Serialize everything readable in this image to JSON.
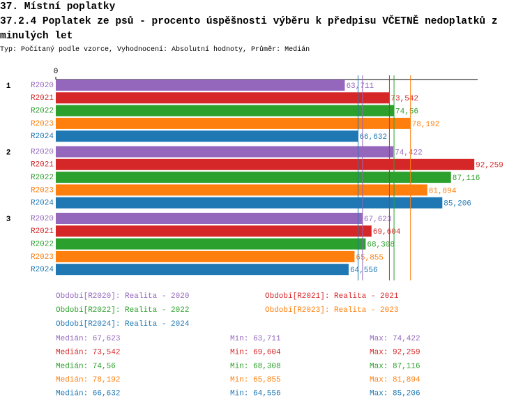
{
  "header": {
    "title": "37. Místní poplatky",
    "subtitle": "37.2.4 Poplatek ze psů - procento úspěšnosti výběru k předpisu VČETNĚ nedoplatků z minulých let",
    "note": "Typ: Počítaný podle vzorce, Vyhodnocení: Absolutní hodnoty, Průměr: Medián"
  },
  "chart_data": {
    "type": "hbar",
    "categories": [
      "1",
      "2",
      "3"
    ],
    "xlim": [
      0,
      93
    ],
    "xticks": [
      0
    ],
    "series": [
      {
        "name": "R2020",
        "color": "#9467bd",
        "values": [
          63.711,
          74.422,
          67.623
        ],
        "value_labels": [
          "63,711",
          "74,422",
          "67,623"
        ],
        "legend": "Období[R2020]: Realita - 2020",
        "median": 67.623,
        "median_label": "Medián: 67,623",
        "min_label": "Min: 63,711",
        "max_label": "Max: 74,422"
      },
      {
        "name": "R2021",
        "color": "#d62728",
        "values": [
          73.542,
          92.259,
          69.604
        ],
        "value_labels": [
          "73,542",
          "92,259",
          "69,604"
        ],
        "legend": "Období[R2021]: Realita - 2021",
        "median": 73.542,
        "median_label": "Medián: 73,542",
        "min_label": "Min: 69,604",
        "max_label": "Max: 92,259"
      },
      {
        "name": "R2022",
        "color": "#2ca02c",
        "values": [
          74.56,
          87.116,
          68.308
        ],
        "value_labels": [
          "74,56",
          "87,116",
          "68,308"
        ],
        "legend": "Období[R2022]: Realita - 2022",
        "median": 74.56,
        "median_label": "Medián: 74,56",
        "min_label": "Min: 68,308",
        "max_label": "Max: 87,116"
      },
      {
        "name": "R2023",
        "color": "#ff7f0e",
        "values": [
          78.192,
          81.894,
          65.855
        ],
        "value_labels": [
          "78,192",
          "81,894",
          "65,855"
        ],
        "legend": "Období[R2023]: Realita - 2023",
        "median": 78.192,
        "median_label": "Medián: 78,192",
        "min_label": "Min: 65,855",
        "max_label": "Max: 81,894"
      },
      {
        "name": "R2024",
        "color": "#1f77b4",
        "values": [
          66.632,
          85.206,
          64.556
        ],
        "value_labels": [
          "66,632",
          "85,206",
          "64,556"
        ],
        "legend": "Období[R2024]: Realita - 2024",
        "median": 66.632,
        "median_label": "Medián: 66,632",
        "min_label": "Min: 64,556",
        "max_label": "Max: 85,206"
      }
    ]
  }
}
